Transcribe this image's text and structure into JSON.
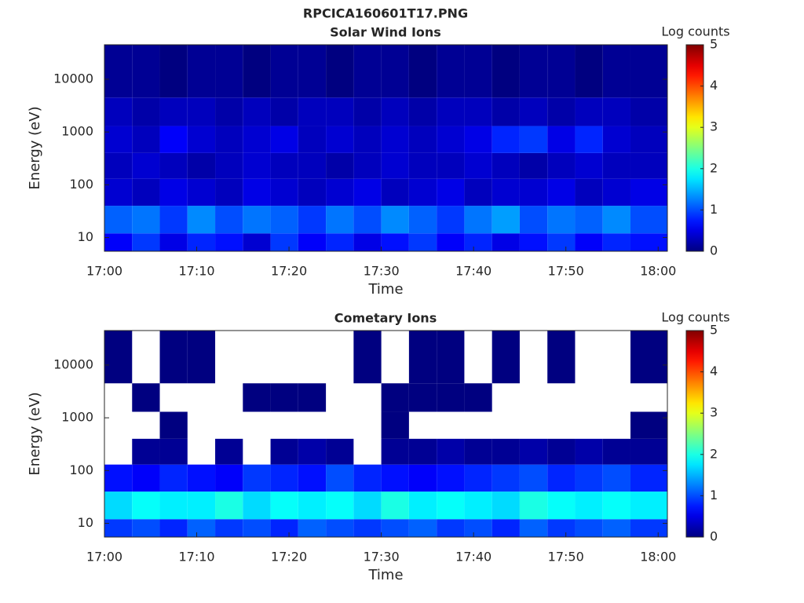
{
  "title": "RPCICA160601T17.PNG",
  "chart_data": [
    {
      "type": "heatmap",
      "title": "Solar Wind Ions",
      "xlabel": "Time",
      "ylabel": "Energy (eV)",
      "x_bins": [
        0,
        3,
        6,
        9,
        12,
        15,
        18,
        21,
        24,
        27,
        30,
        33,
        36,
        39,
        42,
        45,
        48,
        51,
        54,
        57,
        61
      ],
      "y_bins": [
        5.5,
        12,
        40,
        130,
        400,
        1300,
        4500,
        45000
      ],
      "z": [
        [
          0.6,
          0.9,
          0.5,
          0.8,
          0.7,
          0.4,
          0.9,
          0.6,
          0.8,
          0.5,
          0.7,
          0.9,
          0.6,
          0.8,
          0.5,
          0.7,
          0.9,
          0.6,
          0.8,
          0.7
        ],
        [
          1.1,
          1.2,
          0.9,
          1.3,
          1.0,
          1.2,
          1.1,
          0.9,
          1.2,
          1.0,
          1.3,
          1.1,
          0.9,
          1.2,
          1.4,
          1.0,
          1.2,
          1.1,
          1.3,
          1.0
        ],
        [
          0.4,
          0.3,
          0.5,
          0.4,
          0.3,
          0.5,
          0.4,
          0.3,
          0.4,
          0.5,
          0.3,
          0.4,
          0.5,
          0.3,
          0.4,
          0.4,
          0.5,
          0.3,
          0.4,
          0.5
        ],
        [
          0.3,
          0.4,
          0.3,
          0.2,
          0.3,
          0.4,
          0.3,
          0.3,
          0.2,
          0.3,
          0.4,
          0.3,
          0.3,
          0.4,
          0.3,
          0.2,
          0.3,
          0.4,
          0.3,
          0.3
        ],
        [
          0.4,
          0.3,
          0.6,
          0.4,
          0.3,
          0.4,
          0.5,
          0.3,
          0.4,
          0.3,
          0.4,
          0.3,
          0.4,
          0.5,
          0.8,
          0.9,
          0.5,
          0.8,
          0.4,
          0.3
        ],
        [
          0.3,
          0.2,
          0.3,
          0.3,
          0.2,
          0.3,
          0.2,
          0.3,
          0.3,
          0.2,
          0.3,
          0.2,
          0.3,
          0.3,
          0.2,
          0.3,
          0.2,
          0.3,
          0.3,
          0.2
        ],
        [
          0.1,
          0.1,
          0.0,
          0.1,
          0.1,
          0.0,
          0.1,
          0.1,
          0.0,
          0.1,
          0.1,
          0.0,
          0.1,
          0.1,
          0.0,
          0.1,
          0.1,
          0.0,
          0.1,
          0.1
        ]
      ],
      "xlim": [
        0,
        61
      ],
      "ylim": [
        5.5,
        45000
      ],
      "yscale": "log",
      "xticks": [
        {
          "value": 0,
          "label": "17:00"
        },
        {
          "value": 10,
          "label": "17:10"
        },
        {
          "value": 20,
          "label": "17:20"
        },
        {
          "value": 30,
          "label": "17:30"
        },
        {
          "value": 40,
          "label": "17:40"
        },
        {
          "value": 50,
          "label": "17:50"
        },
        {
          "value": 60,
          "label": "18:00"
        }
      ],
      "yticks": [
        10,
        100,
        1000,
        10000
      ],
      "colorbar": {
        "label": "Log counts",
        "lim": [
          0,
          5
        ],
        "ticks": [
          0,
          1,
          2,
          3,
          4,
          5
        ],
        "colormap": "jet"
      }
    },
    {
      "type": "heatmap",
      "title": "Cometary Ions",
      "xlabel": "Time",
      "ylabel": "Energy (eV)",
      "x_bins": [
        0,
        3,
        6,
        9,
        12,
        15,
        18,
        21,
        24,
        27,
        30,
        33,
        36,
        39,
        42,
        45,
        48,
        51,
        54,
        57,
        61
      ],
      "y_bins": [
        5.5,
        12,
        40,
        130,
        400,
        1300,
        4500,
        45000
      ],
      "z": [
        [
          0.9,
          1.0,
          0.8,
          1.1,
          0.9,
          1.0,
          0.8,
          1.1,
          1.0,
          0.9,
          1.0,
          1.1,
          0.9,
          1.0,
          0.8,
          1.1,
          0.9,
          1.0,
          1.1,
          0.9
        ],
        [
          1.7,
          1.9,
          1.8,
          1.8,
          2.0,
          1.7,
          1.9,
          1.8,
          1.9,
          1.7,
          2.0,
          1.8,
          1.9,
          1.8,
          1.7,
          2.0,
          1.9,
          1.8,
          1.9,
          1.8
        ],
        [
          0.7,
          0.6,
          0.8,
          0.7,
          0.6,
          0.9,
          0.8,
          0.7,
          1.0,
          0.8,
          0.7,
          0.6,
          0.7,
          0.8,
          0.9,
          1.0,
          0.8,
          0.9,
          1.0,
          0.8
        ],
        [
          null,
          0.1,
          0.1,
          null,
          0.1,
          null,
          0.1,
          0.2,
          0.1,
          null,
          0.1,
          0.1,
          0.2,
          0.1,
          0.1,
          0.2,
          0.1,
          0.2,
          0.1,
          0.1
        ],
        [
          null,
          null,
          0.0,
          null,
          null,
          null,
          null,
          null,
          null,
          null,
          0.0,
          null,
          null,
          null,
          null,
          null,
          null,
          null,
          null,
          0.0
        ],
        [
          null,
          0.0,
          null,
          null,
          null,
          0.0,
          0.0,
          0.0,
          null,
          null,
          0.0,
          0.0,
          0.0,
          0.0,
          null,
          null,
          null,
          null,
          null,
          null
        ],
        [
          0.0,
          null,
          0.0,
          0.0,
          null,
          null,
          null,
          null,
          null,
          0.0,
          null,
          0.0,
          0.0,
          null,
          0.0,
          null,
          0.0,
          null,
          null,
          0.0
        ]
      ],
      "xlim": [
        0,
        61
      ],
      "ylim": [
        5.5,
        45000
      ],
      "yscale": "log",
      "xticks": [
        {
          "value": 0,
          "label": "17:00"
        },
        {
          "value": 10,
          "label": "17:10"
        },
        {
          "value": 20,
          "label": "17:20"
        },
        {
          "value": 30,
          "label": "17:30"
        },
        {
          "value": 40,
          "label": "17:40"
        },
        {
          "value": 50,
          "label": "17:50"
        },
        {
          "value": 60,
          "label": "18:00"
        }
      ],
      "yticks": [
        10,
        100,
        1000,
        10000
      ],
      "colorbar": {
        "label": "Log counts",
        "lim": [
          0,
          5
        ],
        "ticks": [
          0,
          1,
          2,
          3,
          4,
          5
        ],
        "colormap": "jet"
      }
    }
  ]
}
